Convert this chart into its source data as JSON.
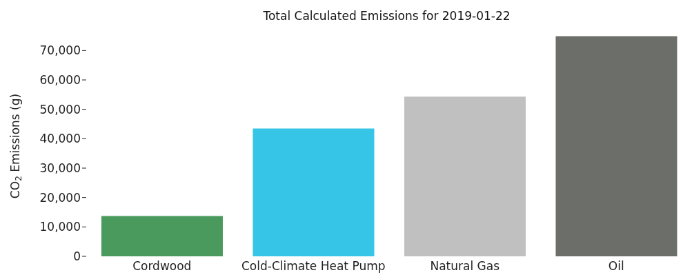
{
  "chart_data": {
    "type": "bar",
    "title": "Total Calculated Emissions for 2019-01-22",
    "ylabel": "CO$_{2}$ Emissions (g)",
    "categories": [
      "Cordwood",
      "Cold-Climate Heat Pump",
      "Natural Gas",
      "Oil"
    ],
    "values": [
      13700,
      43500,
      54300,
      74900
    ],
    "colors": [
      "#4a9a5e",
      "#36c5e6",
      "#c0c0c0",
      "#6c6e69"
    ],
    "ylim": [
      0,
      75000
    ],
    "yticks": [
      0,
      {
        "value": 10000,
        "label": "10,000"
      },
      {
        "value": 20000,
        "label": "20,000"
      },
      {
        "value": 30000,
        "label": "30,000"
      },
      {
        "value": 40000,
        "label": "40,000"
      },
      {
        "value": 50000,
        "label": "50,000"
      },
      {
        "value": 60000,
        "label": "60,000"
      },
      {
        "value": 70000,
        "label": "70,000"
      }
    ],
    "grid": false,
    "legend": false
  }
}
